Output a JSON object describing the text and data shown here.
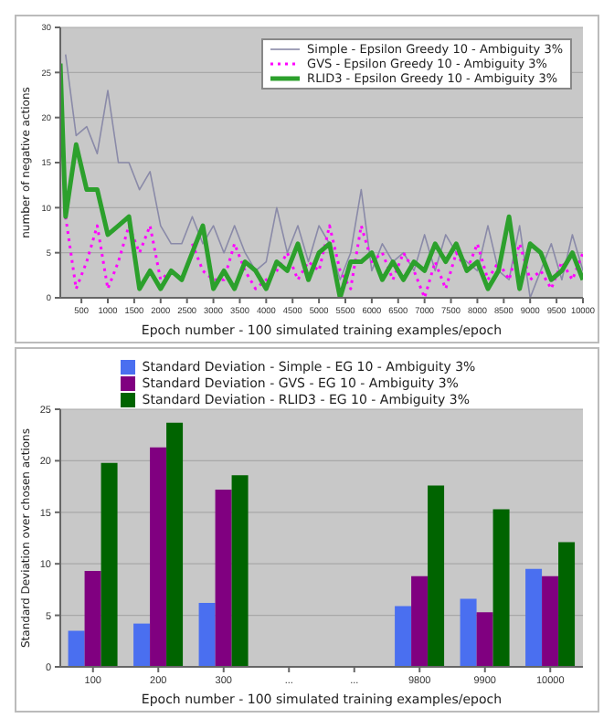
{
  "chart_data": [
    {
      "type": "line",
      "xlabel": "Epoch number - 100 simulated training examples/epoch",
      "ylabel": "number of negative actions",
      "x": [
        100,
        200,
        400,
        600,
        800,
        1000,
        1200,
        1400,
        1600,
        1800,
        2000,
        2200,
        2400,
        2600,
        2800,
        3000,
        3200,
        3400,
        3600,
        3800,
        4000,
        4200,
        4400,
        4600,
        4800,
        5000,
        5200,
        5400,
        5600,
        5800,
        6000,
        6200,
        6400,
        6600,
        6800,
        7000,
        7200,
        7400,
        7600,
        7800,
        8000,
        8200,
        8400,
        8600,
        8800,
        9000,
        9200,
        9400,
        9600,
        9800,
        10000
      ],
      "series": [
        {
          "name": "Simple - Epsilon Greedy 10 - Ambiguity 3%",
          "color": "#8a8aa8",
          "line_style": "solid",
          "values": [
            null,
            27,
            18,
            19,
            16,
            23,
            15,
            15,
            12,
            14,
            8,
            6,
            6,
            9,
            6,
            8,
            5,
            8,
            5,
            3,
            4,
            10,
            5,
            8,
            4,
            8,
            6,
            2,
            5,
            12,
            3,
            6,
            4,
            5,
            3,
            7,
            3,
            7,
            5,
            4,
            3,
            8,
            3,
            2,
            8,
            0,
            3,
            6,
            2,
            7,
            3
          ]
        },
        {
          "name": "GVS - Epsilon Greedy 10 - Ambiguity 3%",
          "color": "#ff00ff",
          "line_style": "dotted",
          "values": [
            null,
            9,
            1,
            4,
            8,
            1,
            4,
            8,
            5,
            8,
            2,
            3,
            null,
            6,
            3,
            2,
            2,
            6,
            3,
            1,
            2,
            3,
            5,
            2,
            4,
            3,
            8,
            3,
            1,
            8,
            4,
            5,
            2,
            5,
            3,
            0,
            4,
            1,
            5,
            3,
            6,
            2,
            4,
            2,
            6,
            2,
            3,
            1,
            4,
            2,
            5
          ]
        },
        {
          "name": "RLID3 - Epsilon Greedy 10 - Ambiguity 3%",
          "color": "#2ca02c",
          "line_style": "solid",
          "values": [
            26,
            9,
            17,
            12,
            12,
            7,
            8,
            9,
            1,
            3,
            1,
            3,
            2,
            5,
            8,
            1,
            3,
            1,
            4,
            3,
            1,
            4,
            3,
            6,
            2,
            5,
            6,
            0,
            4,
            4,
            5,
            2,
            4,
            2,
            4,
            3,
            6,
            4,
            6,
            3,
            4,
            1,
            3,
            9,
            1,
            6,
            5,
            2,
            3,
            5,
            2
          ]
        }
      ],
      "xlim": [
        100,
        10000
      ],
      "xticks": [
        500,
        1000,
        1500,
        2000,
        2500,
        3000,
        3500,
        4000,
        4500,
        5000,
        5500,
        6000,
        6500,
        7000,
        7500,
        8000,
        8500,
        9000,
        9500,
        10000
      ],
      "ylim": [
        0,
        30
      ],
      "yticks": [
        0,
        5,
        10,
        15,
        20,
        25,
        30
      ],
      "grid": "y",
      "legend": "top right"
    },
    {
      "type": "bar",
      "xlabel": "Epoch number - 100 simulated training examples/epoch",
      "ylabel": "Standard Deviation over chosen actions",
      "categories": [
        "100",
        "200",
        "300",
        "...",
        "...",
        "9800",
        "9900",
        "10000"
      ],
      "series": [
        {
          "name": "Standard Deviation - Simple - EG 10 - Ambiguity 3%",
          "color": "#4a6ff0",
          "values": [
            3.5,
            4.2,
            6.2,
            null,
            null,
            5.9,
            6.6,
            9.5
          ]
        },
        {
          "name": "Standard Deviation - GVS - EG 10 - Ambiguity 3%",
          "color": "#800080",
          "values": [
            9.3,
            21.3,
            17.2,
            null,
            null,
            8.8,
            5.3,
            8.8
          ]
        },
        {
          "name": "Standard Deviation - RLID3 - EG 10 - Ambiguity 3%",
          "color": "#006400",
          "values": [
            19.8,
            23.7,
            18.6,
            null,
            null,
            17.6,
            15.3,
            12.1
          ]
        }
      ],
      "ylim": [
        0,
        25
      ],
      "yticks": [
        0,
        5,
        10,
        15,
        20,
        25
      ],
      "grid": "y",
      "legend": "top"
    }
  ]
}
